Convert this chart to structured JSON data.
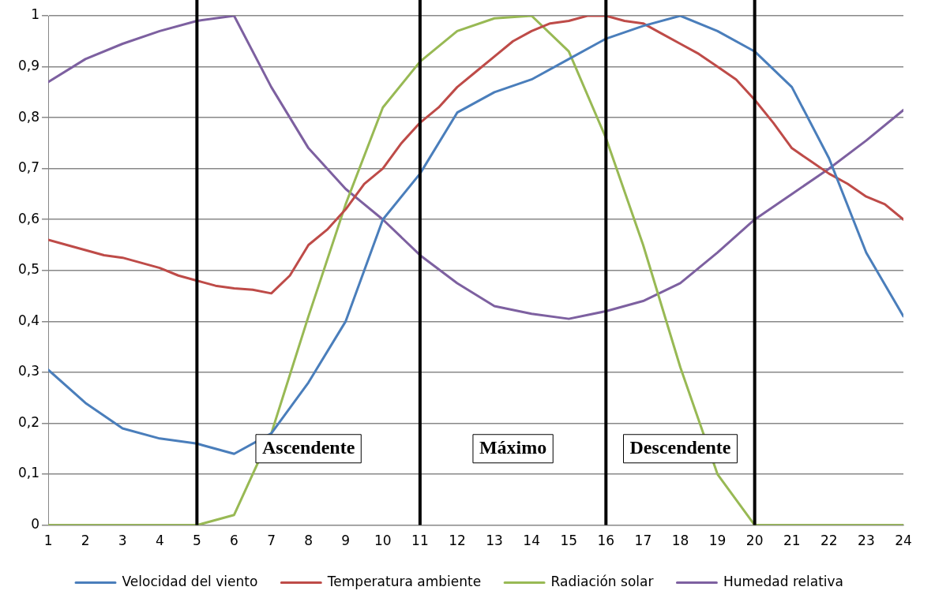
{
  "chart_data": {
    "type": "line",
    "xlim": [
      1,
      24
    ],
    "xticks": [
      1,
      2,
      3,
      4,
      5,
      6,
      7,
      8,
      9,
      10,
      11,
      12,
      13,
      14,
      15,
      16,
      17,
      18,
      19,
      20,
      21,
      22,
      23,
      24
    ],
    "ylim": [
      0,
      1
    ],
    "yticks": [
      0,
      {
        "value": 0.1,
        "label": "0,1"
      },
      {
        "value": 0.2,
        "label": "0,2"
      },
      {
        "value": 0.3,
        "label": "0,3"
      },
      {
        "value": 0.4,
        "label": "0,4"
      },
      {
        "value": 0.5,
        "label": "0,5"
      },
      {
        "value": 0.6,
        "label": "0,6"
      },
      {
        "value": 0.7,
        "label": "0,7"
      },
      {
        "value": 0.8,
        "label": "0,8"
      },
      {
        "value": 0.9,
        "label": "0,9"
      },
      1
    ],
    "grid": "y",
    "legend": "bottom",
    "marker": "none",
    "line_style": "solid",
    "series": [
      {
        "name": "Velocidad del viento",
        "color": "#4a7ebb",
        "x": [
          1,
          2,
          3,
          4,
          5,
          6,
          7,
          8,
          9,
          10,
          11,
          12,
          13,
          14,
          15,
          16,
          17,
          18,
          19,
          20,
          21,
          22,
          23,
          24
        ],
        "values": [
          0.305,
          0.24,
          0.19,
          0.17,
          0.16,
          0.14,
          0.18,
          0.28,
          0.4,
          0.6,
          0.69,
          0.81,
          0.85,
          0.875,
          0.915,
          0.955,
          0.98,
          1.0,
          0.97,
          0.93,
          0.86,
          0.72,
          0.535,
          0.41
        ]
      },
      {
        "name": "Temperatura ambiente",
        "color": "#be4b48",
        "x": [
          1,
          1.5,
          2,
          2.5,
          3,
          3.5,
          4,
          4.5,
          5,
          5.5,
          6,
          6.5,
          7,
          7.5,
          8,
          8.5,
          9,
          9.5,
          10,
          10.5,
          11,
          11.5,
          12,
          12.5,
          13,
          13.5,
          14,
          14.5,
          15,
          15.5,
          16,
          16.5,
          17,
          17.5,
          18,
          18.5,
          19,
          19.5,
          20,
          20.5,
          21,
          21.5,
          22,
          22.5,
          23,
          23.5,
          24
        ],
        "values": [
          0.56,
          0.55,
          0.54,
          0.53,
          0.525,
          0.515,
          0.505,
          0.49,
          0.48,
          0.47,
          0.465,
          0.462,
          0.455,
          0.49,
          0.55,
          0.58,
          0.62,
          0.67,
          0.7,
          0.75,
          0.79,
          0.82,
          0.86,
          0.89,
          0.92,
          0.95,
          0.97,
          0.985,
          0.99,
          1.0,
          1.0,
          0.99,
          0.985,
          0.965,
          0.945,
          0.925,
          0.9,
          0.875,
          0.835,
          0.79,
          0.74,
          0.715,
          0.69,
          0.67,
          0.645,
          0.63,
          0.6
        ]
      },
      {
        "name": "Radiación solar",
        "color": "#98b954",
        "x": [
          1,
          2,
          3,
          4,
          5,
          6,
          7,
          8,
          9,
          10,
          11,
          12,
          13,
          14,
          15,
          16,
          17,
          18,
          19,
          20,
          21,
          22,
          23,
          24
        ],
        "values": [
          0,
          0,
          0,
          0,
          0,
          0.02,
          0.18,
          0.41,
          0.63,
          0.82,
          0.91,
          0.97,
          0.995,
          1.0,
          0.93,
          0.76,
          0.55,
          0.31,
          0.1,
          0,
          0,
          0,
          0,
          0
        ]
      },
      {
        "name": "Humedad relativa",
        "color": "#7d60a0",
        "x": [
          1,
          2,
          3,
          4,
          5,
          6,
          7,
          8,
          9,
          10,
          11,
          12,
          13,
          14,
          15,
          16,
          17,
          18,
          19,
          20,
          21,
          22,
          23,
          24
        ],
        "values": [
          0.87,
          0.915,
          0.945,
          0.97,
          0.99,
          1.0,
          0.86,
          0.74,
          0.66,
          0.6,
          0.53,
          0.475,
          0.43,
          0.415,
          0.405,
          0.42,
          0.44,
          0.475,
          0.535,
          0.6,
          0.65,
          0.7,
          0.755,
          0.815
        ]
      }
    ],
    "ref_lines": [
      {
        "axis": "x",
        "value": 5,
        "color": "#000000"
      },
      {
        "axis": "x",
        "value": 11,
        "color": "#000000"
      },
      {
        "axis": "x",
        "value": 16,
        "color": "#000000"
      },
      {
        "axis": "x",
        "value": 20,
        "color": "#000000"
      }
    ],
    "annotations": [
      "Ascendente",
      "Máximo",
      "Descendente"
    ]
  }
}
